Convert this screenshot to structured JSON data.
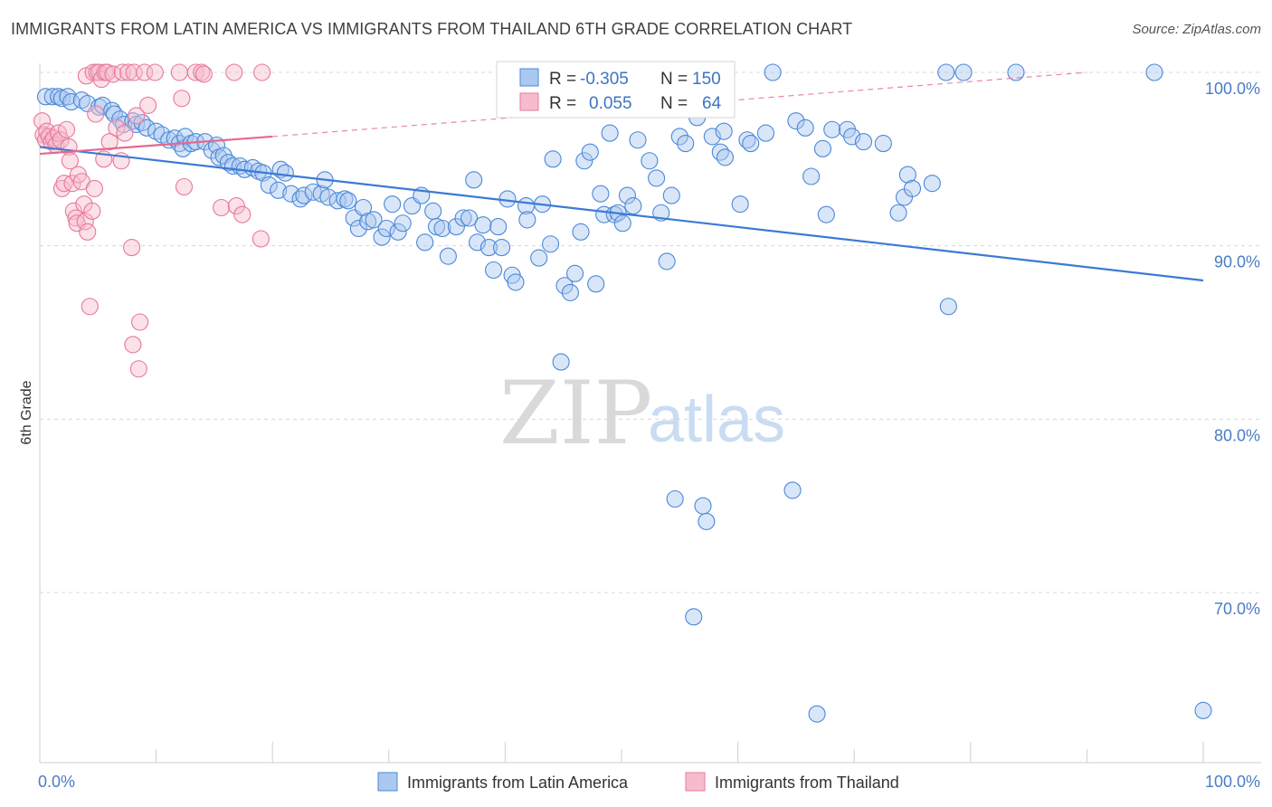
{
  "title": "IMMIGRANTS FROM LATIN AMERICA VS IMMIGRANTS FROM THAILAND 6TH GRADE CORRELATION CHART",
  "source": "Source: ZipAtlas.com",
  "watermark": {
    "zip": "ZIP",
    "atlas": "atlas"
  },
  "colors": {
    "blue": "#4a88d9",
    "blue_fill": "#aac8f0",
    "pink": "#e8789a",
    "pink_fill": "#f6bccd",
    "tick": "#4a7cc7",
    "grid": "#d8d8d8"
  },
  "stats": [
    {
      "r_label": "R =",
      "r_value": "-0.305",
      "n_label": "N =",
      "n_value": "150",
      "color": "blue"
    },
    {
      "r_label": "R =",
      "r_value": "0.055",
      "n_label": "N =",
      "n_value": "64",
      "color": "pink"
    }
  ],
  "legend": [
    {
      "label": "Immigrants from Latin America",
      "color": "blue"
    },
    {
      "label": "Immigrants from Thailand",
      "color": "pink"
    }
  ],
  "chart_data": {
    "type": "scatter",
    "title": "IMMIGRANTS FROM LATIN AMERICA VS IMMIGRANTS FROM THAILAND 6TH GRADE CORRELATION CHART",
    "xlabel": "",
    "ylabel": "6th Grade",
    "xlim": [
      0,
      100
    ],
    "ylim": [
      61.5,
      101.5
    ],
    "x_tick_labels": [
      "0.0%",
      "100.0%"
    ],
    "y_ticks": [
      70,
      80,
      90,
      100
    ],
    "y_tick_labels": [
      "70.0%",
      "80.0%",
      "90.0%",
      "100.0%"
    ],
    "grid": true,
    "legend_position": "bottom-center",
    "series": [
      {
        "name": "Immigrants from Latin America",
        "color": "blue",
        "trend": {
          "x": [
            0,
            100
          ],
          "y": [
            95.7,
            88.0
          ],
          "dashed_to": null
        },
        "points": [
          [
            0.5,
            98.6
          ],
          [
            1.1,
            98.6
          ],
          [
            1.6,
            98.6
          ],
          [
            1.9,
            98.5
          ],
          [
            2.4,
            98.6
          ],
          [
            2.7,
            98.3
          ],
          [
            3.6,
            98.4
          ],
          [
            4.1,
            98.2
          ],
          [
            5.1,
            98.0
          ],
          [
            5.4,
            98.1
          ],
          [
            6.2,
            97.8
          ],
          [
            6.4,
            97.6
          ],
          [
            6.9,
            97.3
          ],
          [
            7.2,
            97.0
          ],
          [
            8.0,
            97.2
          ],
          [
            8.3,
            97.0
          ],
          [
            8.8,
            97.1
          ],
          [
            9.2,
            96.8
          ],
          [
            10.0,
            96.6
          ],
          [
            10.5,
            96.4
          ],
          [
            11.1,
            96.1
          ],
          [
            11.6,
            96.2
          ],
          [
            12.0,
            95.9
          ],
          [
            12.3,
            95.6
          ],
          [
            12.5,
            96.3
          ],
          [
            13.0,
            95.9
          ],
          [
            13.4,
            96.0
          ],
          [
            14.2,
            96.0
          ],
          [
            14.8,
            95.5
          ],
          [
            15.2,
            95.8
          ],
          [
            15.4,
            95.1
          ],
          [
            15.8,
            95.2
          ],
          [
            16.2,
            94.8
          ],
          [
            16.6,
            94.6
          ],
          [
            17.2,
            94.6
          ],
          [
            17.6,
            94.4
          ],
          [
            18.3,
            94.5
          ],
          [
            18.8,
            94.3
          ],
          [
            19.2,
            94.2
          ],
          [
            19.7,
            93.5
          ],
          [
            20.5,
            93.2
          ],
          [
            20.7,
            94.4
          ],
          [
            21.1,
            94.2
          ],
          [
            21.6,
            93.0
          ],
          [
            22.4,
            92.7
          ],
          [
            22.7,
            92.9
          ],
          [
            23.5,
            93.1
          ],
          [
            24.2,
            93.0
          ],
          [
            24.5,
            93.8
          ],
          [
            24.8,
            92.8
          ],
          [
            25.6,
            92.6
          ],
          [
            26.2,
            92.7
          ],
          [
            26.5,
            92.6
          ],
          [
            27.0,
            91.6
          ],
          [
            27.4,
            91.0
          ],
          [
            27.8,
            92.2
          ],
          [
            28.2,
            91.4
          ],
          [
            28.7,
            91.5
          ],
          [
            29.4,
            90.5
          ],
          [
            29.8,
            91.0
          ],
          [
            30.3,
            92.4
          ],
          [
            30.8,
            90.8
          ],
          [
            31.2,
            91.3
          ],
          [
            32.0,
            92.3
          ],
          [
            32.8,
            92.9
          ],
          [
            33.1,
            90.2
          ],
          [
            33.8,
            92.0
          ],
          [
            34.1,
            91.1
          ],
          [
            34.6,
            91.0
          ],
          [
            35.1,
            89.4
          ],
          [
            35.8,
            91.1
          ],
          [
            36.4,
            91.6
          ],
          [
            36.9,
            91.6
          ],
          [
            37.3,
            93.8
          ],
          [
            37.6,
            90.2
          ],
          [
            38.1,
            91.2
          ],
          [
            38.6,
            89.9
          ],
          [
            39.0,
            88.6
          ],
          [
            39.4,
            91.1
          ],
          [
            39.7,
            89.9
          ],
          [
            40.2,
            92.7
          ],
          [
            40.6,
            88.3
          ],
          [
            40.9,
            87.9
          ],
          [
            41.8,
            92.3
          ],
          [
            41.9,
            91.5
          ],
          [
            42.9,
            89.3
          ],
          [
            43.2,
            92.4
          ],
          [
            43.9,
            90.1
          ],
          [
            44.1,
            95.0
          ],
          [
            44.8,
            83.3
          ],
          [
            45.1,
            87.7
          ],
          [
            45.6,
            87.3
          ],
          [
            46.0,
            88.4
          ],
          [
            46.5,
            90.8
          ],
          [
            46.8,
            94.9
          ],
          [
            47.3,
            95.4
          ],
          [
            47.8,
            87.8
          ],
          [
            48.2,
            93.0
          ],
          [
            48.5,
            91.8
          ],
          [
            49.0,
            96.5
          ],
          [
            49.4,
            91.8
          ],
          [
            49.7,
            91.9
          ],
          [
            50.1,
            91.3
          ],
          [
            50.5,
            92.9
          ],
          [
            51.0,
            92.3
          ],
          [
            51.4,
            96.1
          ],
          [
            52.0,
            98.3
          ],
          [
            52.4,
            94.9
          ],
          [
            53.0,
            93.9
          ],
          [
            53.4,
            91.9
          ],
          [
            53.9,
            89.1
          ],
          [
            54.3,
            92.9
          ],
          [
            54.6,
            75.4
          ],
          [
            55.0,
            96.3
          ],
          [
            55.5,
            95.9
          ],
          [
            56.2,
            68.6
          ],
          [
            56.5,
            97.4
          ],
          [
            57.0,
            75.0
          ],
          [
            57.3,
            74.1
          ],
          [
            57.8,
            96.3
          ],
          [
            58.5,
            95.4
          ],
          [
            58.8,
            96.6
          ],
          [
            58.9,
            95.1
          ],
          [
            60.2,
            92.4
          ],
          [
            60.8,
            96.1
          ],
          [
            61.1,
            95.9
          ],
          [
            63.0,
            100.0
          ],
          [
            62.4,
            96.5
          ],
          [
            64.7,
            75.9
          ],
          [
            65.0,
            97.2
          ],
          [
            65.8,
            96.8
          ],
          [
            66.3,
            94.0
          ],
          [
            66.8,
            63.0
          ],
          [
            67.3,
            95.6
          ],
          [
            67.6,
            91.8
          ],
          [
            68.1,
            96.7
          ],
          [
            69.4,
            96.7
          ],
          [
            69.8,
            96.3
          ],
          [
            70.8,
            96.0
          ],
          [
            72.5,
            95.9
          ],
          [
            73.8,
            91.9
          ],
          [
            74.3,
            92.8
          ],
          [
            74.6,
            94.1
          ],
          [
            75.0,
            93.3
          ],
          [
            76.7,
            93.6
          ],
          [
            77.9,
            100.0
          ],
          [
            78.1,
            86.5
          ],
          [
            79.4,
            100.0
          ],
          [
            83.9,
            100.0
          ],
          [
            95.8,
            100.0
          ],
          [
            100.0,
            63.2
          ]
        ]
      },
      {
        "name": "Immigrants from Thailand",
        "color": "pink",
        "trend": {
          "x": [
            0,
            20
          ],
          "y": [
            95.3,
            96.3
          ],
          "dashed_to": [
            90,
            100.0
          ]
        },
        "points": [
          [
            0.2,
            97.2
          ],
          [
            0.3,
            96.4
          ],
          [
            0.5,
            96.1
          ],
          [
            0.6,
            96.6
          ],
          [
            0.8,
            96.3
          ],
          [
            1.0,
            96.0
          ],
          [
            1.2,
            96.2
          ],
          [
            1.4,
            95.8
          ],
          [
            1.6,
            96.5
          ],
          [
            1.8,
            96.1
          ],
          [
            1.9,
            93.3
          ],
          [
            2.1,
            93.6
          ],
          [
            2.3,
            96.7
          ],
          [
            2.5,
            95.7
          ],
          [
            2.6,
            94.9
          ],
          [
            2.8,
            93.6
          ],
          [
            2.9,
            92.0
          ],
          [
            3.1,
            91.6
          ],
          [
            3.2,
            91.3
          ],
          [
            3.3,
            94.1
          ],
          [
            3.6,
            93.7
          ],
          [
            3.8,
            92.4
          ],
          [
            3.9,
            91.4
          ],
          [
            4.0,
            99.8
          ],
          [
            4.1,
            90.8
          ],
          [
            4.3,
            86.5
          ],
          [
            4.5,
            92.0
          ],
          [
            4.6,
            100.0
          ],
          [
            4.7,
            93.3
          ],
          [
            4.8,
            97.6
          ],
          [
            4.9,
            100.0
          ],
          [
            5.1,
            100.0
          ],
          [
            5.3,
            99.6
          ],
          [
            5.5,
            95.0
          ],
          [
            5.6,
            100.0
          ],
          [
            5.8,
            100.0
          ],
          [
            6.0,
            96.0
          ],
          [
            6.3,
            99.9
          ],
          [
            6.6,
            96.8
          ],
          [
            7.0,
            94.9
          ],
          [
            7.1,
            100.0
          ],
          [
            7.3,
            96.5
          ],
          [
            7.6,
            100.0
          ],
          [
            7.9,
            89.9
          ],
          [
            8.0,
            84.3
          ],
          [
            8.1,
            100.0
          ],
          [
            8.3,
            97.5
          ],
          [
            8.5,
            82.9
          ],
          [
            8.6,
            85.6
          ],
          [
            9.0,
            100.0
          ],
          [
            9.3,
            98.1
          ],
          [
            9.9,
            100.0
          ],
          [
            12.0,
            100.0
          ],
          [
            12.2,
            98.5
          ],
          [
            12.4,
            93.4
          ],
          [
            13.4,
            100.0
          ],
          [
            13.9,
            100.0
          ],
          [
            14.1,
            99.9
          ],
          [
            15.6,
            92.2
          ],
          [
            16.7,
            100.0
          ],
          [
            16.9,
            92.3
          ],
          [
            17.4,
            91.8
          ],
          [
            19.0,
            90.4
          ],
          [
            19.1,
            100.0
          ]
        ]
      }
    ]
  }
}
